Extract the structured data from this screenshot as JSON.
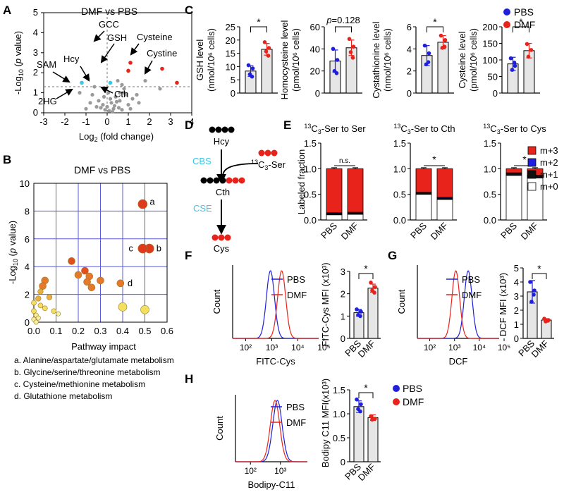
{
  "colors": {
    "pbs": "#1f1fdc",
    "dmf": "#e8231c",
    "grid": "#5b5bdc",
    "bar": "#e6e6e6",
    "cyan": "#3cc6e6",
    "gray_pt": "#9a9a9a"
  },
  "panel_letters": [
    "A",
    "B",
    "C",
    "D",
    "E",
    "F",
    "G",
    "H"
  ],
  "chart_data": [
    {
      "id": "A",
      "type": "scatter",
      "title": "DMF vs PBS",
      "xlabel": "Log2 (fold change)",
      "ylabel": "-Log10 (p value)",
      "xlim": [
        -3,
        4
      ],
      "ylim": [
        0,
        5
      ],
      "xticks": [
        "-3",
        "-2",
        "-1",
        "0",
        "1",
        "2",
        "3",
        "4"
      ],
      "yticks": [
        "0",
        "1",
        "2",
        "3",
        "4",
        "5"
      ],
      "threshold_y": 1.3,
      "labels": [
        "DMF vs PBS",
        "SAM",
        "Hcy",
        "GCC",
        "GSH",
        "Cysteine",
        "Cystine",
        "2HG",
        "Cth"
      ],
      "highlight_points": [
        {
          "name": "GCC",
          "x": 1.0,
          "y": 2.1,
          "color": "dmf"
        },
        {
          "name": "GSH",
          "x": 1.1,
          "y": 2.5,
          "color": "dmf"
        },
        {
          "name": "Cysteine",
          "x": 2.6,
          "y": 2.2,
          "color": "dmf"
        },
        {
          "name": "Cystine",
          "x": 3.3,
          "y": 1.5,
          "color": "dmf"
        },
        {
          "name": "SAM",
          "x": -1.2,
          "y": 1.5,
          "color": "cyan"
        },
        {
          "name": "Hcy",
          "x": 0.15,
          "y": 1.5,
          "color": "cyan"
        }
      ],
      "points": [
        [
          -0.9,
          1.7
        ],
        [
          -0.6,
          1.3
        ],
        [
          0.5,
          1.6
        ],
        [
          0.7,
          1.4
        ],
        [
          0.8,
          1.2
        ],
        [
          1.8,
          1.6
        ],
        [
          2.5,
          1.2
        ],
        [
          -1.3,
          1.0
        ],
        [
          -0.7,
          0.9
        ],
        [
          -0.4,
          0.6
        ],
        [
          -0.2,
          0.4
        ],
        [
          0.0,
          0.3
        ],
        [
          0.1,
          0.1
        ],
        [
          0.2,
          0.5
        ],
        [
          0.3,
          0.2
        ],
        [
          0.4,
          0.8
        ],
        [
          0.6,
          0.6
        ],
        [
          0.9,
          0.9
        ],
        [
          1.2,
          0.7
        ],
        [
          0.25,
          0.05
        ],
        [
          -0.1,
          0.15
        ],
        [
          0.35,
          0.35
        ],
        [
          0.55,
          0.25
        ],
        [
          0.7,
          0.15
        ],
        [
          -0.3,
          0.25
        ],
        [
          -0.5,
          0.3
        ],
        [
          1.0,
          0.4
        ],
        [
          1.4,
          0.9
        ],
        [
          0.8,
          1.0
        ],
        [
          -0.8,
          0.5
        ],
        [
          0.15,
          0.7
        ],
        [
          0.45,
          0.55
        ],
        [
          -0.15,
          0.8
        ],
        [
          1.1,
          0.2
        ],
        [
          0.05,
          1.0
        ],
        [
          1.5,
          0.5
        ],
        [
          -1.0,
          0.2
        ],
        [
          0.6,
          1.0
        ]
      ]
    },
    {
      "id": "B",
      "type": "scatter",
      "title": "DMF vs PBS",
      "xlabel": "Pathway impact",
      "ylabel": "-Log10 (p value)",
      "xlim": [
        0,
        0.6
      ],
      "ylim": [
        0,
        10
      ],
      "xticks": [
        "0.0",
        "0.1",
        "0.2",
        "0.3",
        "0.4",
        "0.5",
        "0.6"
      ],
      "yticks": [
        "0",
        "2",
        "4",
        "6",
        "8",
        "10"
      ],
      "labelled": [
        {
          "label": "a",
          "x": 0.49,
          "y": 8.5
        },
        {
          "label": "b",
          "x": 0.52,
          "y": 5.3
        },
        {
          "label": "c",
          "x": 0.49,
          "y": 5.3
        },
        {
          "label": "d",
          "x": 0.39,
          "y": 2.8
        }
      ],
      "points": [
        [
          0.49,
          8.5
        ],
        [
          0.52,
          5.3
        ],
        [
          0.49,
          5.3
        ],
        [
          0.39,
          2.8
        ],
        [
          0.17,
          4.4
        ],
        [
          0.23,
          3.7
        ],
        [
          0.2,
          3.4
        ],
        [
          0.25,
          3.3
        ],
        [
          0.3,
          3.0
        ],
        [
          0.24,
          2.9
        ],
        [
          0.26,
          2.5
        ],
        [
          0.05,
          3.0
        ],
        [
          0.04,
          2.6
        ],
        [
          0.03,
          2.2
        ],
        [
          0.07,
          1.8
        ],
        [
          0.02,
          1.7
        ],
        [
          0.03,
          1.2
        ],
        [
          0.05,
          1.0
        ],
        [
          0.09,
          0.8
        ],
        [
          0.4,
          1.1
        ],
        [
          0.5,
          0.9
        ],
        [
          0.11,
          0.6
        ],
        [
          0.01,
          0.5
        ],
        [
          0.02,
          0.3
        ],
        [
          0.0,
          0.2
        ],
        [
          0.0,
          0.8
        ],
        [
          0.0,
          1.4
        ],
        [
          0.01,
          0.0
        ]
      ],
      "legend": [
        "a. Alanine/aspartate/glutamate metabolism",
        "b. Glycine/serine/threonine metabolism",
        "c. Cysteine/methionine metabolism",
        "d. Glutathione metabolism"
      ]
    },
    {
      "id": "C",
      "type": "bar",
      "legend": [
        "PBS",
        "DMF"
      ],
      "subplots": [
        {
          "name": "GSH",
          "ylabel": "GSH level (nmol/10^6 cells)",
          "ylabel1": "GSH level",
          "ylabel2": "(nmol/10⁶ cells)",
          "ylim": [
            0,
            25
          ],
          "yticks": [
            "0",
            "5",
            "10",
            "15",
            "20",
            "25"
          ],
          "categories": [
            "PBS",
            "DMF"
          ],
          "values": [
            8.3,
            16.5
          ],
          "errors": [
            2.0,
            2.2
          ],
          "pbs_pts": [
            10.5,
            9.3,
            7.1,
            6.2
          ],
          "dmf_pts": [
            19.2,
            17.0,
            15.7,
            14.1
          ],
          "sig": "*"
        },
        {
          "name": "Homocysteine",
          "ylabel": "Homocysteine level (pmol/10^6 cells)",
          "ylabel1": "Homocysteine level",
          "ylabel2": "(pmol/10⁶ cells)",
          "ylim": [
            0,
            60
          ],
          "yticks": [
            "0",
            "20",
            "40",
            "60"
          ],
          "categories": [
            "PBS",
            "DMF"
          ],
          "values": [
            29,
            41
          ],
          "errors": [
            10,
            7
          ],
          "pbs_pts": [
            40,
            30,
            20,
            18
          ],
          "dmf_pts": [
            49,
            42,
            37,
            32
          ],
          "sig": "p=0.128"
        },
        {
          "name": "Cystathionine",
          "ylabel": "Cystathionine level (nmol/10^6 cells)",
          "ylabel1": "Cystathionine level",
          "ylabel2": "(nmol/10⁶ cells)",
          "ylim": [
            0,
            6
          ],
          "yticks": [
            "0",
            "2",
            "4",
            "6"
          ],
          "categories": [
            "PBS",
            "DMF"
          ],
          "values": [
            3.4,
            4.6
          ],
          "errors": [
            0.9,
            0.6
          ],
          "pbs_pts": [
            4.3,
            3.6,
            2.6,
            2.8
          ],
          "dmf_pts": [
            5.2,
            4.8,
            4.1,
            4.2
          ],
          "sig": "*"
        },
        {
          "name": "Cysteine",
          "ylabel": "Cysteine level (pmol/10^6 cells)",
          "ylabel1": "Cysteine level",
          "ylabel2": "(pmol/10⁶ cells)",
          "ylim": [
            0,
            200
          ],
          "yticks": [
            "0",
            "50",
            "100",
            "150",
            "200"
          ],
          "categories": [
            "PBS",
            "DMF"
          ],
          "values": [
            88,
            128
          ],
          "errors": [
            20,
            22
          ],
          "pbs_pts": [
            105,
            82,
            70,
            92
          ],
          "dmf_pts": [
            148,
            130,
            110
          ],
          "sig": "*"
        }
      ]
    },
    {
      "id": "E",
      "type": "bar",
      "stacked": true,
      "ylabel": "Labeled fraction",
      "legend": [
        "m+3",
        "m+2",
        "m+1",
        "m+0"
      ],
      "legend_colors": [
        "#e8231c",
        "#1f1fdc",
        "#111111",
        "#ffffff"
      ],
      "ylim": [
        0,
        1.5
      ],
      "yticks": [
        "0.0",
        "0.5",
        "1.0",
        "1.5"
      ],
      "categories": [
        "PBS",
        "DMF"
      ],
      "subplots": [
        {
          "title": "13C3-Ser to Ser",
          "t_sup": "13",
          "t_main": "C",
          "t_sub": "3",
          "t_rest": "-Ser to Ser",
          "sig": "n.s.",
          "m0": [
            0.1,
            0.11
          ],
          "m1": [
            0.025,
            0.025
          ],
          "m2": [
            0.015,
            0.015
          ],
          "m3": [
            0.86,
            0.85
          ]
        },
        {
          "title": "13C3-Ser to Cth",
          "t_sup": "13",
          "t_main": "C",
          "t_sub": "3",
          "t_rest": "-Ser to Cth",
          "sig": "*",
          "m0": [
            0.5,
            0.4
          ],
          "m1": [
            0.025,
            0.025
          ],
          "m2": [
            0.015,
            0.015
          ],
          "m3": [
            0.46,
            0.56
          ]
        },
        {
          "title": "13C3-Ser to Cys",
          "t_sup": "13",
          "t_main": "C",
          "t_sub": "3",
          "t_rest": "-Ser to Cys",
          "sig": "*",
          "m0": [
            0.87,
            0.82
          ],
          "m1": [
            0.04,
            0.04
          ],
          "m2": [
            0.01,
            0.01
          ],
          "m3": [
            0.08,
            0.13
          ]
        }
      ]
    },
    {
      "id": "F",
      "type": "line+bar",
      "hist": {
        "xlabel": "FITC-Cys",
        "ylabel": "Count",
        "xticks": [
          "10²",
          "10³",
          "10⁴",
          "10⁵"
        ],
        "legend": [
          "PBS",
          "DMF"
        ],
        "peaks": [
          2.95,
          3.38
        ]
      },
      "bar": {
        "ylabel": "FITC-Cys MFI (x10³)",
        "ylim": [
          0,
          3
        ],
        "yticks": [
          "0",
          "1",
          "2",
          "3"
        ],
        "categories": [
          "PBS",
          "DMF"
        ],
        "values": [
          1.15,
          2.25
        ],
        "errors": [
          0.15,
          0.18
        ],
        "pbs_pts": [
          1.3,
          1.2,
          1.05,
          1.0
        ],
        "dmf_pts": [
          2.5,
          2.3,
          2.15,
          2.05
        ],
        "sig": "*"
      }
    },
    {
      "id": "G",
      "type": "line+bar",
      "hist": {
        "xlabel": "DCF",
        "ylabel": "Count",
        "xticks": [
          "10²",
          "10³",
          "10⁴",
          "10⁵"
        ],
        "legend": [
          "PBS",
          "DMF"
        ],
        "peaks": [
          3.55,
          3.05
        ]
      },
      "bar": {
        "ylabel": "DCF MFI (x10³)",
        "ylim": [
          0,
          5
        ],
        "yticks": [
          "0",
          "1",
          "2",
          "3",
          "4",
          "5"
        ],
        "categories": [
          "PBS",
          "DMF"
        ],
        "values": [
          3.3,
          1.3
        ],
        "errors": [
          0.8,
          0.1
        ],
        "pbs_pts": [
          4.0,
          3.4,
          2.6,
          3.1
        ],
        "dmf_pts": [
          1.4,
          1.3,
          1.2,
          1.25
        ],
        "sig": "*"
      }
    },
    {
      "id": "H",
      "type": "line+bar",
      "hist": {
        "xlabel": "Bodipy-C11",
        "ylabel": "Count",
        "xticks": [
          "10²",
          "10³"
        ],
        "legend": [
          "PBS",
          "DMF"
        ],
        "peaks": [
          2.9,
          2.82
        ]
      },
      "bar": {
        "ylabel": "Bodipy C11 MFI(x10³)",
        "ylim": [
          0,
          1.5
        ],
        "yticks": [
          "0",
          "0.5",
          "1.0",
          "1.5"
        ],
        "categories": [
          "PBS",
          "DMF"
        ],
        "values": [
          1.15,
          0.92
        ],
        "errors": [
          0.12,
          0.06
        ],
        "pbs_pts": [
          1.3,
          1.2,
          1.1,
          1.05
        ],
        "dmf_pts": [
          0.95,
          0.9,
          0.88
        ],
        "sig": "*",
        "legend": [
          "PBS",
          "DMF"
        ]
      }
    }
  ],
  "diagram_D": {
    "nodes": [
      "Hcy",
      "Cth",
      "Cys"
    ],
    "enzymes": [
      "CBS",
      "CSE"
    ],
    "tracer": "13C3-Ser",
    "tracer_parts": {
      "sup": "13",
      "main": "C",
      "sub": "3",
      "rest": "-Ser"
    }
  }
}
